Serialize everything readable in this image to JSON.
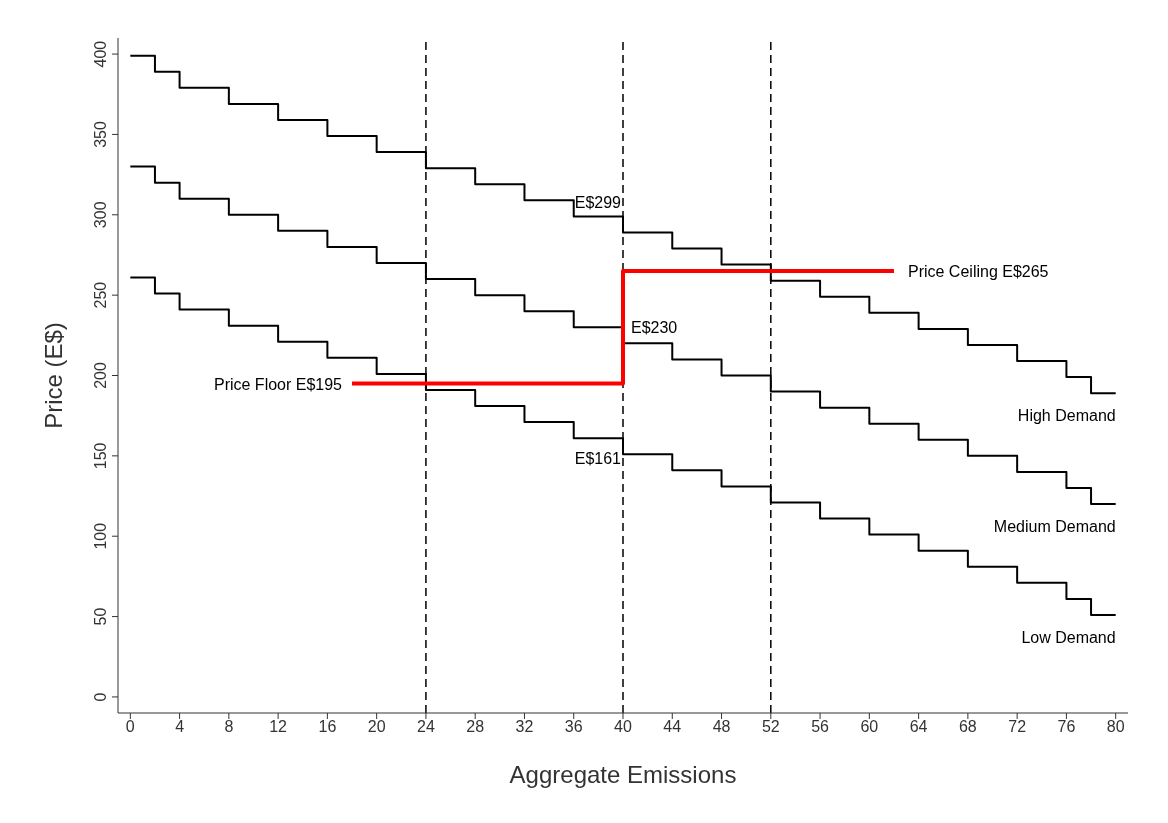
{
  "chart_data": {
    "type": "step",
    "xlabel": "Aggregate Emissions",
    "ylabel": "Price (E$)",
    "xlim": [
      -1,
      81
    ],
    "ylim": [
      -10,
      410
    ],
    "xticks": [
      0,
      4,
      8,
      12,
      16,
      20,
      24,
      28,
      32,
      36,
      40,
      44,
      48,
      52,
      56,
      60,
      64,
      68,
      72,
      76,
      80
    ],
    "yticks": [
      0,
      50,
      100,
      150,
      200,
      250,
      300,
      350,
      400
    ],
    "marker": "none",
    "series": [
      {
        "name": "High Demand",
        "color": "#000000",
        "x": [
          0,
          2,
          4,
          8,
          12,
          16,
          20,
          24,
          28,
          32,
          36,
          40,
          44,
          48,
          52,
          56,
          60,
          64,
          68,
          72,
          76,
          78,
          80
        ],
        "values": [
          399,
          389,
          379,
          369,
          359,
          349,
          339,
          329,
          319,
          309,
          299,
          289,
          279,
          269,
          259,
          249,
          239,
          229,
          219,
          209,
          199,
          189,
          189
        ]
      },
      {
        "name": "Medium Demand",
        "color": "#000000",
        "x": [
          0,
          2,
          4,
          8,
          12,
          16,
          20,
          24,
          28,
          32,
          36,
          40,
          44,
          48,
          52,
          56,
          60,
          64,
          68,
          72,
          76,
          78,
          80
        ],
        "values": [
          330,
          320,
          310,
          300,
          290,
          280,
          270,
          260,
          250,
          240,
          230,
          220,
          210,
          200,
          190,
          180,
          170,
          160,
          150,
          140,
          130,
          120,
          120
        ]
      },
      {
        "name": "Low Demand",
        "color": "#000000",
        "x": [
          0,
          2,
          4,
          8,
          12,
          16,
          20,
          24,
          28,
          32,
          36,
          40,
          44,
          48,
          52,
          56,
          60,
          64,
          68,
          72,
          76,
          78,
          80
        ],
        "values": [
          261,
          251,
          241,
          231,
          221,
          211,
          201,
          191,
          181,
          171,
          161,
          151,
          141,
          131,
          121,
          111,
          101,
          91,
          81,
          71,
          61,
          51,
          51
        ]
      },
      {
        "color": "#ff0000",
        "x": [
          18,
          40,
          62
        ],
        "values": [
          195,
          265,
          265
        ]
      }
    ],
    "ref_lines": [
      {
        "axis": "x",
        "value": 24,
        "color": "#000000",
        "line_style": "dashed"
      },
      {
        "axis": "x",
        "value": 40,
        "color": "#000000",
        "line_style": "dashed"
      },
      {
        "axis": "x",
        "value": 52,
        "color": "#000000",
        "line_style": "dashed"
      }
    ],
    "annotations": [
      {
        "text": "E$299",
        "x": 40,
        "y": 299
      },
      {
        "text": "E$230",
        "x": 40,
        "y": 230
      },
      {
        "text": "E$161",
        "x": 40,
        "y": 161
      },
      {
        "text": "Price Floor E$195",
        "x": 18,
        "y": 195
      },
      {
        "text": "Price Ceiling E$265",
        "x": 62,
        "y": 265
      }
    ]
  }
}
